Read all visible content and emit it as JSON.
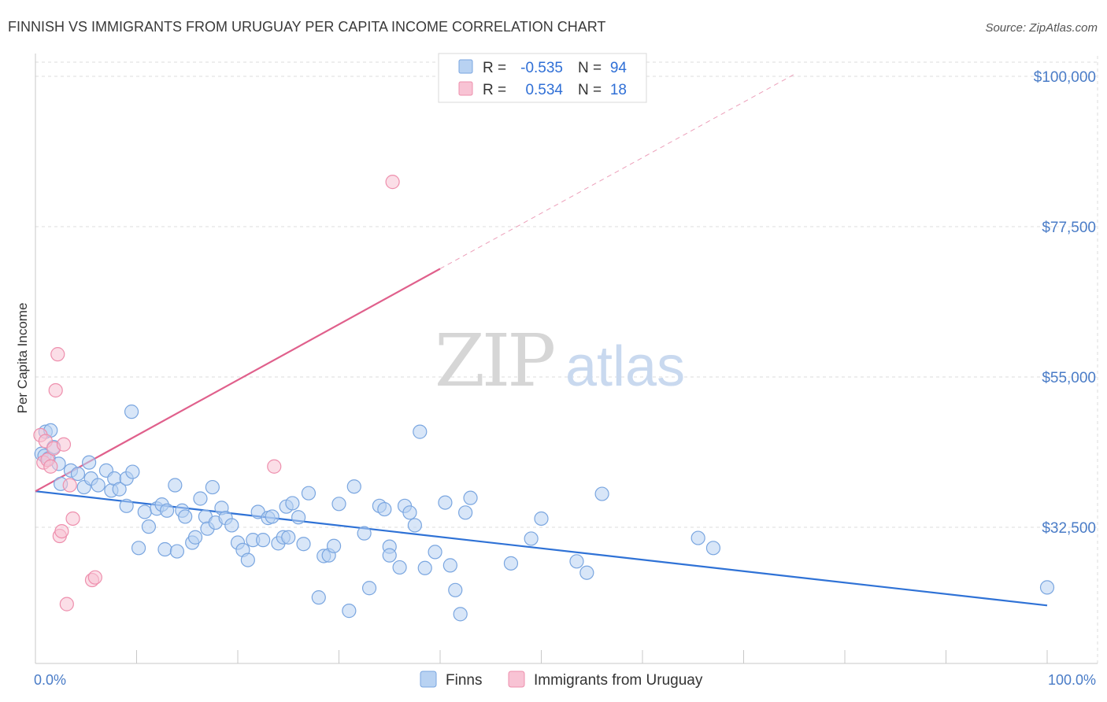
{
  "title": "FINNISH VS IMMIGRANTS FROM URUGUAY PER CAPITA INCOME CORRELATION CHART",
  "source": "Source: ZipAtlas.com",
  "watermark": {
    "zip": "ZIP",
    "atlas": "atlas"
  },
  "colors": {
    "finns_fill": "#b8d2f2",
    "finns_stroke": "#7aa6e0",
    "finns_line": "#2f72d6",
    "uruguay_fill": "#f8c3d4",
    "uruguay_stroke": "#ee8fad",
    "uruguay_line": "#e0608c",
    "tick_label": "#4a7cc7",
    "grid": "#dddddd"
  },
  "legend": {
    "rows": [
      {
        "r_label": "R =",
        "r_value": "-0.535",
        "n_label": "N =",
        "n_value": "94"
      },
      {
        "r_label": "R =",
        "r_value": "0.534",
        "n_label": "N =",
        "n_value": "18"
      }
    ]
  },
  "chart_data": {
    "type": "scatter",
    "ylabel": "Per Capita Income",
    "xlim": [
      0,
      100
    ],
    "ylim": [
      12000,
      105000
    ],
    "x_tick_labels": [
      "0.0%",
      "100.0%"
    ],
    "y_ticks": [
      {
        "value": 32500,
        "label": "$32,500"
      },
      {
        "value": 55000,
        "label": "$55,000"
      },
      {
        "value": 77500,
        "label": "$77,500"
      },
      {
        "value": 100000,
        "label": "$100,000"
      }
    ],
    "series": [
      {
        "name": "Finns",
        "color_key": "finns",
        "points": [
          [
            0.6,
            43500
          ],
          [
            0.9,
            43200
          ],
          [
            1.0,
            46800
          ],
          [
            1.3,
            42800
          ],
          [
            1.5,
            47000
          ],
          [
            1.8,
            44500
          ],
          [
            2.3,
            42000
          ],
          [
            2.5,
            39000
          ],
          [
            3.5,
            41000
          ],
          [
            4.2,
            40500
          ],
          [
            4.8,
            38500
          ],
          [
            5.3,
            42200
          ],
          [
            5.5,
            39800
          ],
          [
            6.2,
            38800
          ],
          [
            7.0,
            41000
          ],
          [
            7.5,
            38000
          ],
          [
            7.8,
            39800
          ],
          [
            8.3,
            38200
          ],
          [
            9.0,
            35700
          ],
          [
            9.5,
            49800
          ],
          [
            9.0,
            39800
          ],
          [
            9.6,
            40800
          ],
          [
            10.2,
            29400
          ],
          [
            10.8,
            34800
          ],
          [
            11.2,
            32600
          ],
          [
            12.0,
            35300
          ],
          [
            12.5,
            35900
          ],
          [
            12.8,
            29200
          ],
          [
            13.0,
            35000
          ],
          [
            13.8,
            38800
          ],
          [
            14.0,
            28900
          ],
          [
            14.5,
            35000
          ],
          [
            14.8,
            34100
          ],
          [
            15.5,
            30200
          ],
          [
            15.8,
            31000
          ],
          [
            16.3,
            36800
          ],
          [
            16.8,
            34100
          ],
          [
            17.0,
            32300
          ],
          [
            17.5,
            38500
          ],
          [
            17.8,
            33200
          ],
          [
            18.4,
            35400
          ],
          [
            18.8,
            33900
          ],
          [
            19.4,
            32800
          ],
          [
            20.0,
            30200
          ],
          [
            20.5,
            29100
          ],
          [
            21.0,
            27600
          ],
          [
            21.5,
            30600
          ],
          [
            22.0,
            34800
          ],
          [
            22.5,
            30600
          ],
          [
            23.0,
            33900
          ],
          [
            23.4,
            34100
          ],
          [
            24.0,
            30100
          ],
          [
            24.5,
            31000
          ],
          [
            24.8,
            35600
          ],
          [
            25.0,
            31000
          ],
          [
            25.4,
            36100
          ],
          [
            26.0,
            34000
          ],
          [
            26.5,
            30000
          ],
          [
            27.0,
            37600
          ],
          [
            28.0,
            22000
          ],
          [
            28.5,
            28200
          ],
          [
            29.0,
            28300
          ],
          [
            29.5,
            29700
          ],
          [
            30.0,
            36000
          ],
          [
            31.0,
            20000
          ],
          [
            31.5,
            38600
          ],
          [
            32.5,
            31600
          ],
          [
            33.0,
            23400
          ],
          [
            34.0,
            35700
          ],
          [
            34.5,
            35200
          ],
          [
            35.0,
            29600
          ],
          [
            35.0,
            28300
          ],
          [
            36.0,
            26500
          ],
          [
            36.5,
            35700
          ],
          [
            37.0,
            34700
          ],
          [
            37.5,
            32800
          ],
          [
            38.0,
            46800
          ],
          [
            38.5,
            26400
          ],
          [
            39.5,
            28800
          ],
          [
            40.5,
            36200
          ],
          [
            41.0,
            26800
          ],
          [
            41.5,
            23100
          ],
          [
            42.0,
            19500
          ],
          [
            42.5,
            34700
          ],
          [
            43.0,
            36900
          ],
          [
            47.0,
            27100
          ],
          [
            49.0,
            30800
          ],
          [
            50.0,
            33800
          ],
          [
            53.5,
            27400
          ],
          [
            54.5,
            25700
          ],
          [
            56.0,
            37500
          ],
          [
            65.5,
            30900
          ],
          [
            67.0,
            29400
          ],
          [
            100.0,
            23500
          ]
        ]
      },
      {
        "name": "Immigrants from Uruguay",
        "color_key": "uruguay",
        "points": [
          [
            0.5,
            46300
          ],
          [
            0.8,
            42200
          ],
          [
            1.0,
            45400
          ],
          [
            1.2,
            42600
          ],
          [
            1.5,
            41600
          ],
          [
            1.8,
            44300
          ],
          [
            2.0,
            53000
          ],
          [
            2.2,
            58400
          ],
          [
            2.4,
            31200
          ],
          [
            2.6,
            31900
          ],
          [
            2.8,
            44900
          ],
          [
            3.1,
            21000
          ],
          [
            3.4,
            38800
          ],
          [
            3.7,
            33800
          ],
          [
            5.6,
            24600
          ],
          [
            5.9,
            25000
          ],
          [
            23.6,
            41600
          ],
          [
            35.3,
            84200
          ]
        ]
      }
    ],
    "trendlines": [
      {
        "series": "Finns",
        "x": [
          0,
          100
        ],
        "y": [
          37900,
          20800
        ]
      },
      {
        "series": "Immigrants from Uruguay",
        "solid_x": [
          0,
          40
        ],
        "solid_y": [
          37900,
          71200
        ],
        "dashed_x": [
          40,
          75
        ],
        "dashed_y": [
          71200,
          100300
        ]
      }
    ],
    "legend_placement": "bottom-center",
    "grid": true
  }
}
